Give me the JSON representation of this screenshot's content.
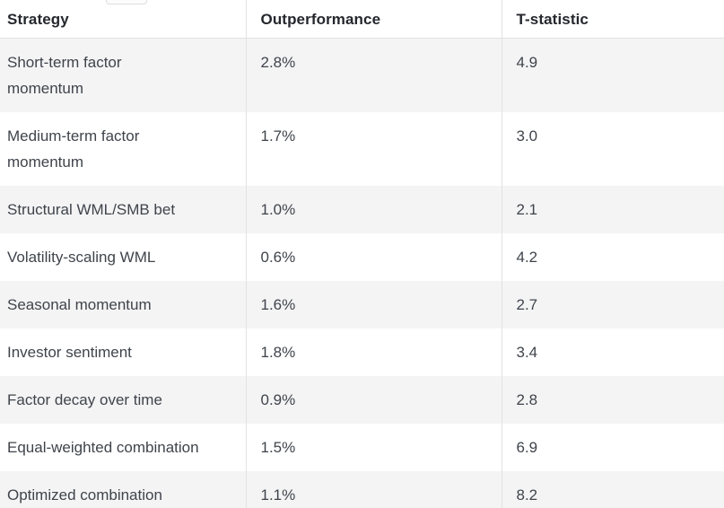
{
  "chart_data": {
    "type": "table",
    "columns": [
      {
        "label": "Strategy"
      },
      {
        "label": "Outperformance"
      },
      {
        "label": "T-statistic"
      }
    ],
    "rows": [
      {
        "strategy": "Short-term factor\nmomentum",
        "outperformance": "2.8%",
        "t_statistic": "4.9"
      },
      {
        "strategy": "Medium-term factor\nmomentum",
        "outperformance": "1.7%",
        "t_statistic": "3.0"
      },
      {
        "strategy": "Structural WML/SMB bet",
        "outperformance": "1.0%",
        "t_statistic": "2.1"
      },
      {
        "strategy": "Volatility-scaling WML",
        "outperformance": "0.6%",
        "t_statistic": "4.2"
      },
      {
        "strategy": "Seasonal momentum",
        "outperformance": "1.6%",
        "t_statistic": "2.7"
      },
      {
        "strategy": "Investor sentiment",
        "outperformance": "1.8%",
        "t_statistic": "3.4"
      },
      {
        "strategy": "Factor decay over time",
        "outperformance": "0.9%",
        "t_statistic": "2.8"
      },
      {
        "strategy": "Equal-weighted combination",
        "outperformance": "1.5%",
        "t_statistic": "6.9"
      },
      {
        "strategy": "Optimized combination",
        "outperformance": "1.1%",
        "t_statistic": "8.2"
      }
    ]
  },
  "colors": {
    "background": "#ffffff",
    "row_stripe": "#f4f4f5",
    "divider": "#e2e2e2",
    "header_text": "#24272d",
    "body_text": "#3f444b"
  }
}
